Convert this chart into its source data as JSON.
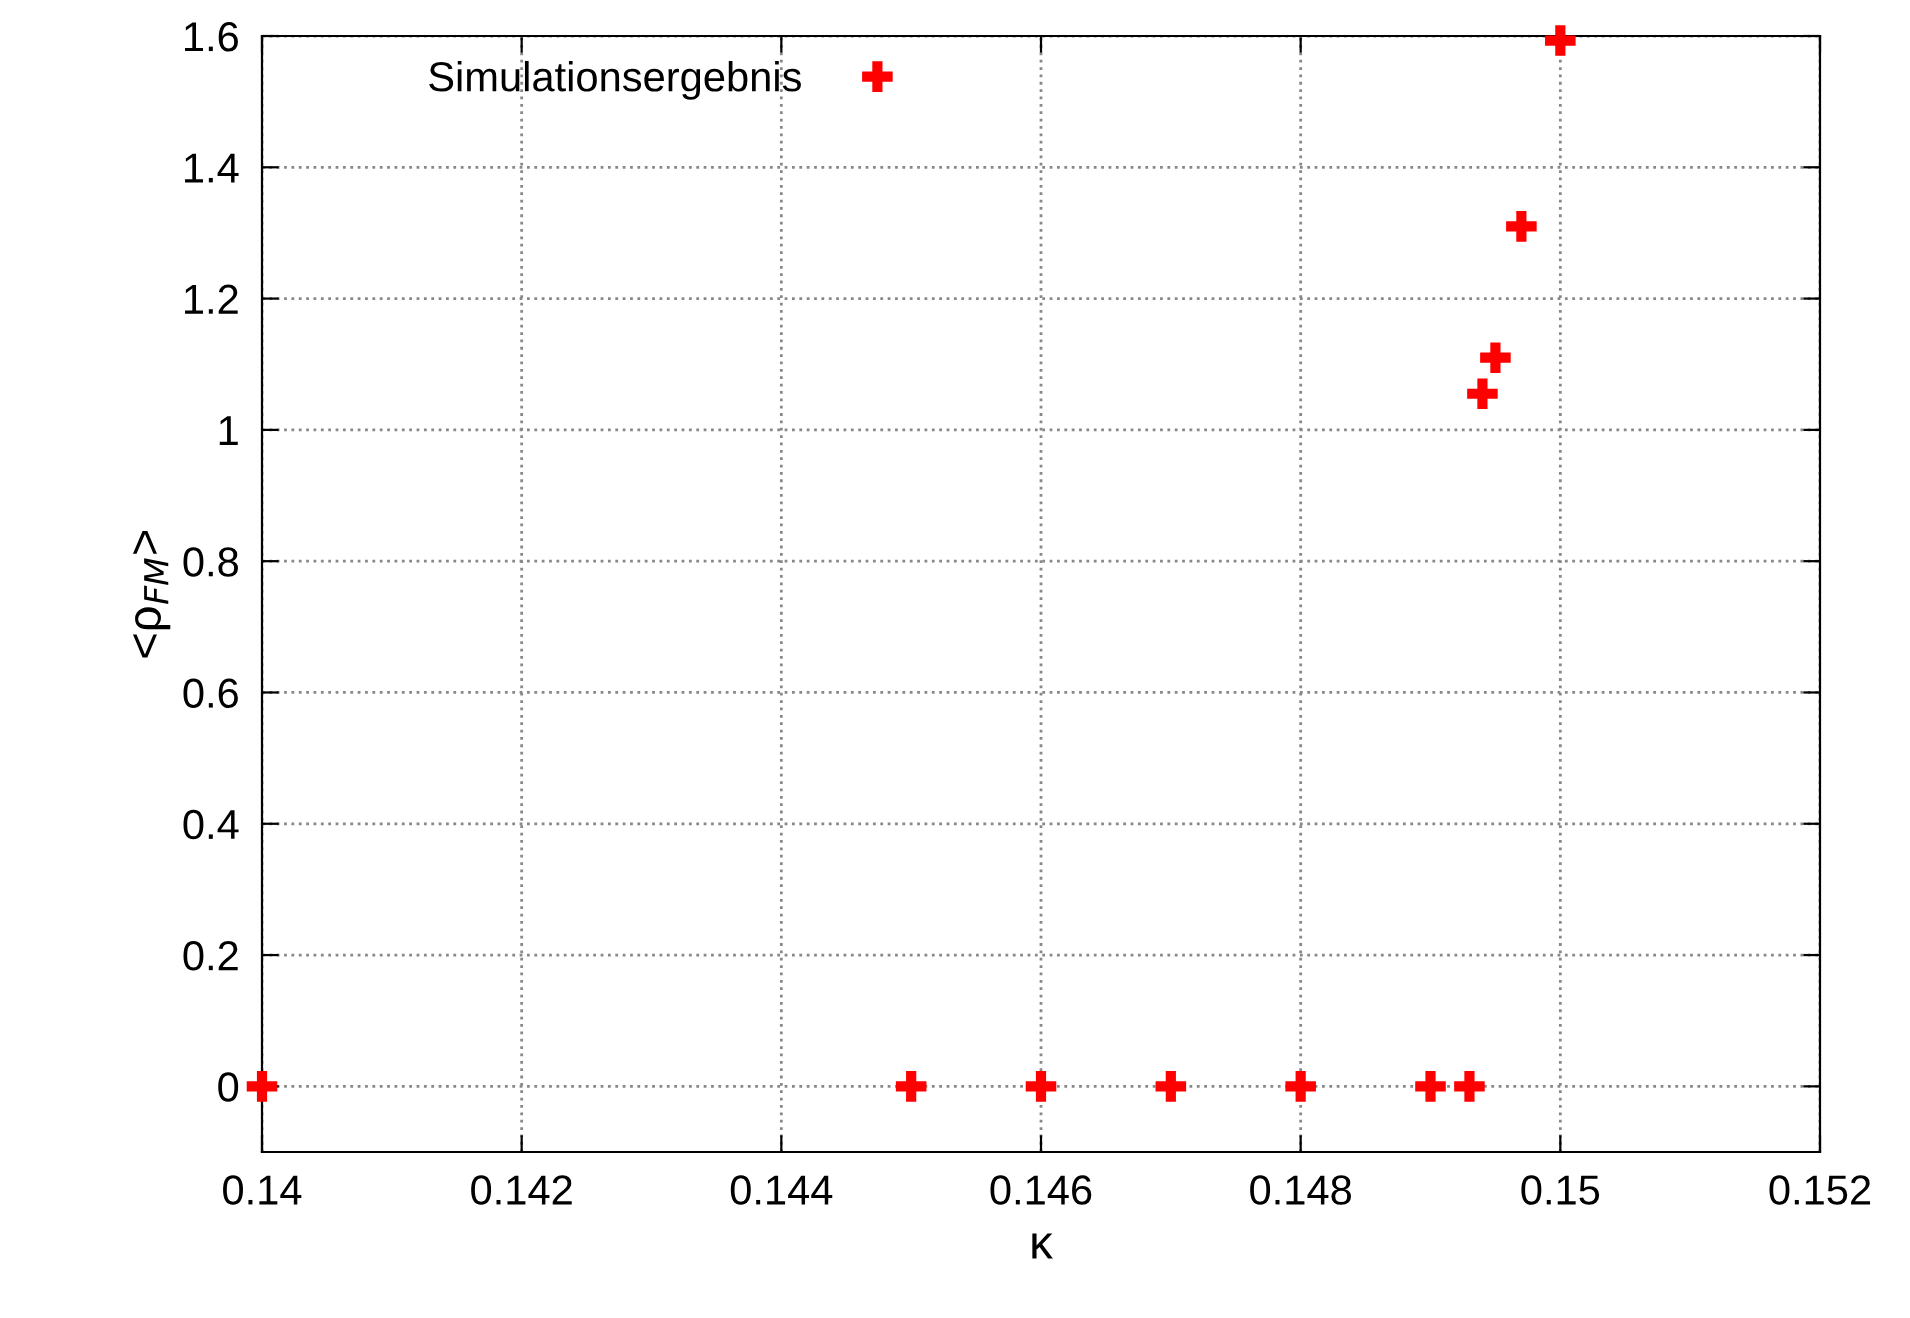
{
  "chart_data": {
    "type": "scatter",
    "xlabel": "κ",
    "ylabel": "<ρ$_{FM}$>",
    "x": [
      0.14,
      0.145,
      0.146,
      0.147,
      0.148,
      0.149,
      0.1493,
      0.1494,
      0.1495,
      0.1497,
      0.15
    ],
    "series": [
      {
        "name": "Simulationsergebnis",
        "color": "#ff0000",
        "values": [
          0,
          0,
          0,
          0,
          0,
          0,
          0,
          1.055,
          1.11,
          1.31,
          1.593
        ]
      }
    ],
    "xlim": [
      0.14,
      0.152
    ],
    "xticks": [
      0.14,
      0.142,
      0.144,
      0.146,
      0.148,
      0.15,
      0.152
    ],
    "ylim": [
      -0.1,
      1.6
    ],
    "yticks": [
      0,
      0.2,
      0.4,
      0.6,
      0.8,
      1,
      1.2,
      1.4,
      1.6
    ],
    "grid": true,
    "legend": "top left",
    "marker": "cross"
  }
}
